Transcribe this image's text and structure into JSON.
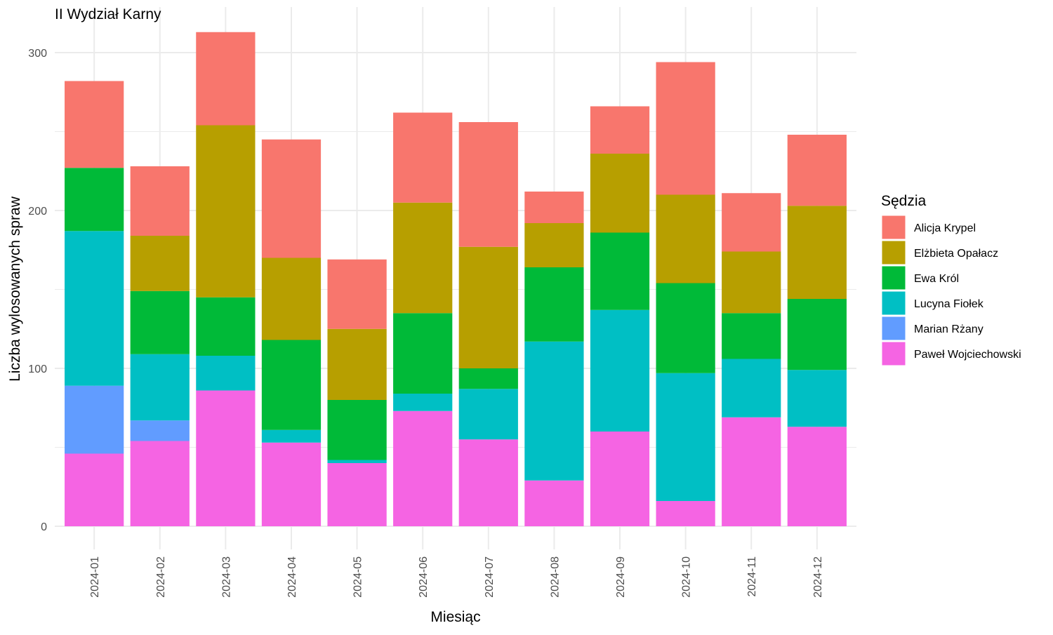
{
  "chart_data": {
    "type": "bar",
    "stacked": true,
    "title": "II Wydział Karny",
    "xlabel": "Miesiąc",
    "ylabel": "Liczba wylosowanych spraw",
    "ylim": [
      0,
      320
    ],
    "yticks": [
      0,
      100,
      200,
      300
    ],
    "grid": true,
    "legend": {
      "title": "Sędzia",
      "position": "right"
    },
    "categories": [
      "2024-01",
      "2024-02",
      "2024-03",
      "2024-04",
      "2024-05",
      "2024-06",
      "2024-07",
      "2024-08",
      "2024-09",
      "2024-10",
      "2024-11",
      "2024-12"
    ],
    "series": [
      {
        "name": "Paweł Wojciechowski",
        "color": "#F564E3",
        "values": [
          46,
          54,
          86,
          53,
          40,
          73,
          55,
          29,
          60,
          16,
          69,
          63
        ]
      },
      {
        "name": "Marian Rżany",
        "color": "#619CFF",
        "values": [
          43,
          13,
          0,
          0,
          0,
          0,
          0,
          0,
          0,
          0,
          0,
          0
        ]
      },
      {
        "name": "Lucyna Fiołek",
        "color": "#00BFC4",
        "values": [
          98,
          42,
          22,
          8,
          2,
          11,
          32,
          88,
          77,
          81,
          37,
          36
        ]
      },
      {
        "name": "Ewa Król",
        "color": "#00BA38",
        "values": [
          40,
          40,
          37,
          57,
          38,
          51,
          13,
          47,
          49,
          57,
          29,
          45
        ]
      },
      {
        "name": "Elżbieta Opałacz",
        "color": "#B79F00",
        "values": [
          0,
          35,
          109,
          52,
          45,
          70,
          77,
          28,
          50,
          56,
          39,
          59
        ]
      },
      {
        "name": "Alicja Krypel",
        "color": "#F8766D",
        "values": [
          55,
          44,
          59,
          75,
          44,
          57,
          79,
          20,
          30,
          84,
          37,
          45
        ]
      }
    ],
    "legend_order": [
      "Alicja Krypel",
      "Elżbieta Opałacz",
      "Ewa Król",
      "Lucyna Fiołek",
      "Marian Rżany",
      "Paweł Wojciechowski"
    ]
  }
}
